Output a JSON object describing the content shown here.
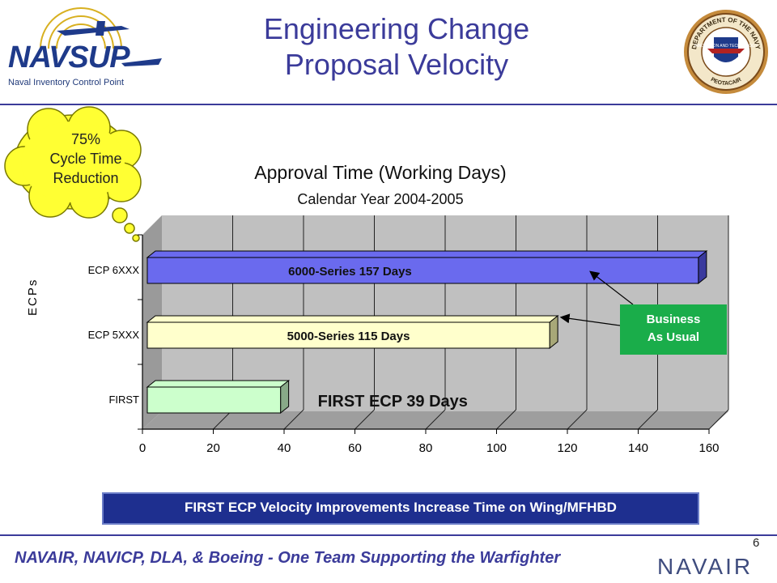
{
  "header": {
    "title_line1": "Engineering Change",
    "title_line2": "Proposal Velocity",
    "logo_left_text": "NAVSUP",
    "logo_left_tagline": "Naval Inventory Control Point",
    "seal_top_text": "DEPARTMENT OF THE NAVY",
    "seal_bottom_text": "PEOTACAIR",
    "seal_center_text": "INNOVATION AND TECHNOLOGY"
  },
  "callout": {
    "line1": "75%",
    "line2": "Cycle Time",
    "line3": "Reduction"
  },
  "chart_data": {
    "type": "bar",
    "orientation": "horizontal",
    "title": "Approval Time (Working Days)",
    "subtitle": "Calendar Year 2004-2005",
    "ylabel": "ECPs",
    "categories": [
      "ECP 6XXX",
      "ECP 5XXX",
      "FIRST"
    ],
    "values": [
      157,
      115,
      39
    ],
    "bar_labels": [
      "6000-Series 157 Days",
      "5000-Series 115 Days",
      "FIRST ECP 39 Days"
    ],
    "bar_colors": [
      "#6a6aee",
      "#ffffcc",
      "#ccffcc"
    ],
    "xlim": [
      0,
      160
    ],
    "xticks": [
      0,
      20,
      40,
      60,
      80,
      100,
      120,
      140,
      160
    ],
    "grid": true
  },
  "annotation": {
    "business_line1": "Business",
    "business_line2": "As Usual"
  },
  "banner": {
    "text": "FIRST ECP Velocity Improvements Increase Time on Wing/MFHBD"
  },
  "footer": {
    "tagline": "NAVAIR, NAVICP, DLA, & Boeing - One Team Supporting the Warfighter",
    "page_number": "6",
    "logo_right_text": "NAVAIR"
  }
}
